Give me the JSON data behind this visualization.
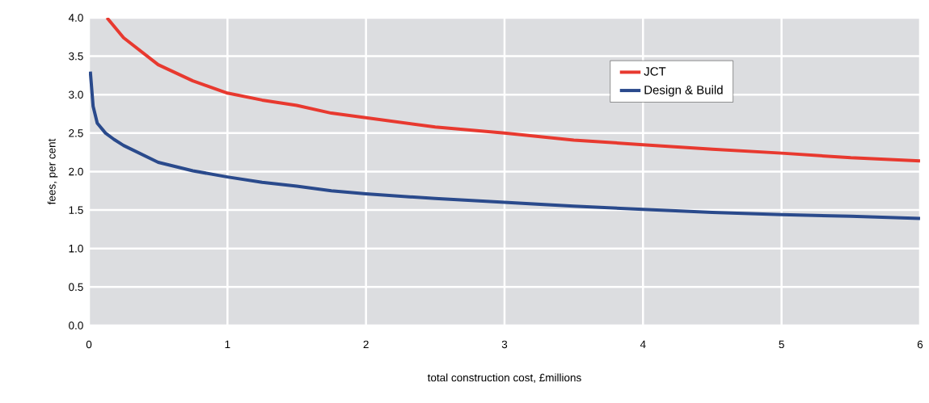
{
  "chart_data": {
    "type": "line",
    "xlabel": "total construction cost, £millions",
    "ylabel": "fees, per cent",
    "xlim": [
      0,
      6
    ],
    "ylim": [
      0,
      4
    ],
    "xticks": [
      0,
      1,
      2,
      3,
      4,
      5,
      6
    ],
    "yticks": [
      {
        "value": 0,
        "label": "0.0"
      },
      {
        "value": 0.5,
        "label": "0.5"
      },
      {
        "value": 1,
        "label": "1.0"
      },
      {
        "value": 1.5,
        "label": "1.5"
      },
      {
        "value": 2,
        "label": "2.0"
      },
      {
        "value": 2.5,
        "label": "2.5"
      },
      {
        "value": 3,
        "label": "3.0"
      },
      {
        "value": 3.5,
        "label": "3.5"
      },
      {
        "value": 4,
        "label": "4.0"
      }
    ],
    "grid": true,
    "legend": "top right",
    "marker": "none",
    "line_style": "solid",
    "series": [
      {
        "name": "JCT",
        "color": "#e8392f",
        "x": [
          0.13,
          0.25,
          0.5,
          0.75,
          1,
          1.25,
          1.5,
          1.75,
          2,
          2.5,
          3,
          3.5,
          4,
          4.5,
          5,
          5.5,
          6
        ],
        "values": [
          4.0,
          3.74,
          3.39,
          3.18,
          3.02,
          2.93,
          2.86,
          2.76,
          2.7,
          2.58,
          2.5,
          2.41,
          2.35,
          2.29,
          2.24,
          2.18,
          2.14
        ]
      },
      {
        "name": "Design & Build",
        "color": "#2a4a8c",
        "x": [
          0.01,
          0.03,
          0.06,
          0.12,
          0.18,
          0.25,
          0.5,
          0.75,
          1,
          1.25,
          1.5,
          1.75,
          2,
          2.5,
          3,
          3.5,
          4,
          4.5,
          5,
          5.5,
          6
        ],
        "values": [
          3.3,
          2.85,
          2.63,
          2.5,
          2.42,
          2.34,
          2.12,
          2.01,
          1.93,
          1.86,
          1.81,
          1.75,
          1.71,
          1.65,
          1.6,
          1.55,
          1.51,
          1.47,
          1.44,
          1.42,
          1.39
        ]
      }
    ]
  }
}
